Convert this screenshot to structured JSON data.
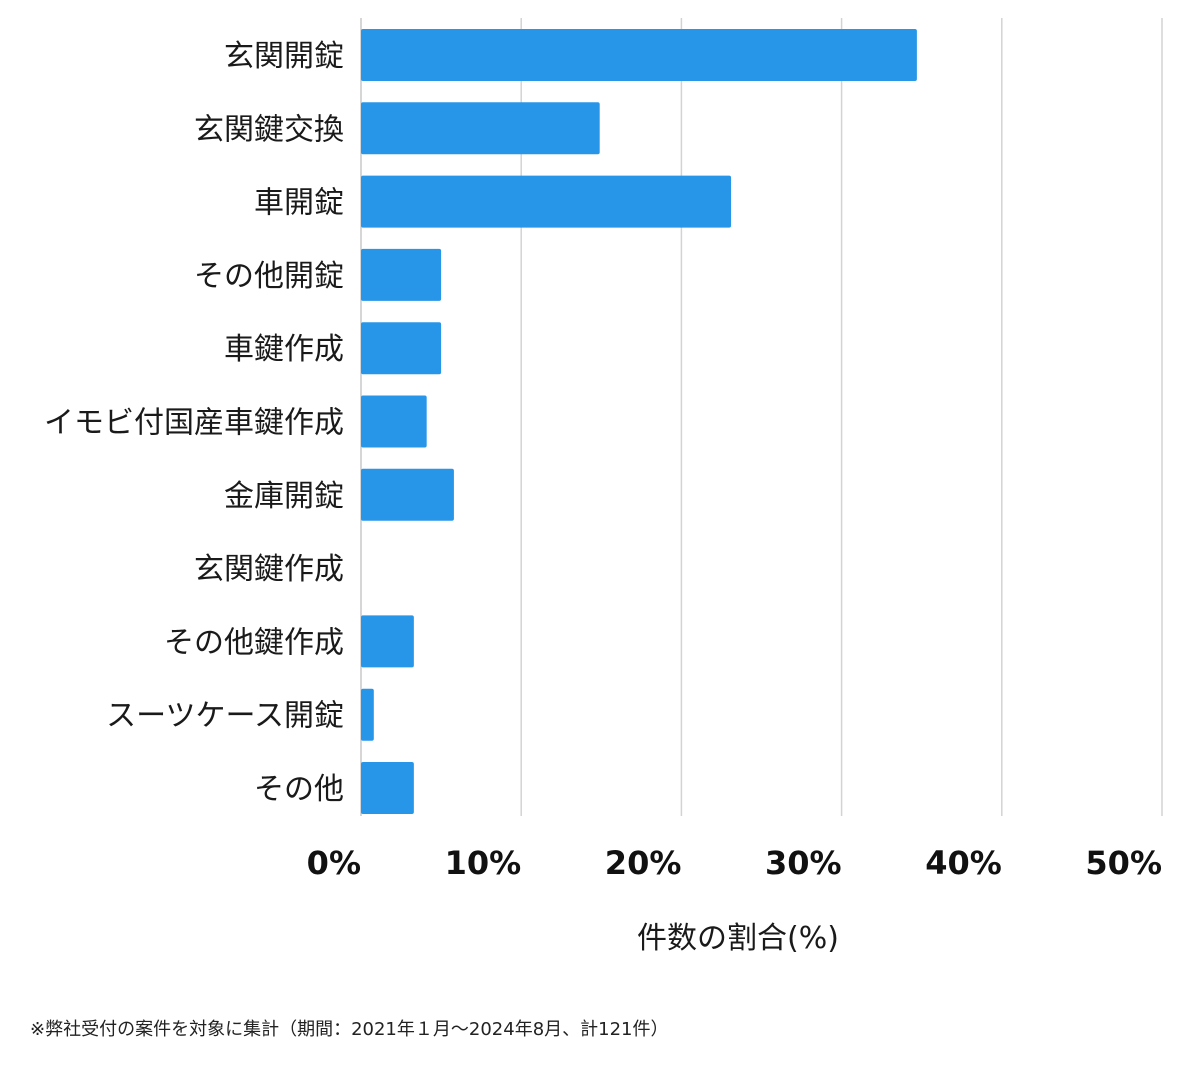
{
  "chart_data": {
    "type": "bar",
    "orientation": "horizontal",
    "categories": [
      "玄関開錠",
      "玄関鍵交換",
      "車開錠",
      "その他開錠",
      "車鍵作成",
      "イモビ付国産車鍵作成",
      "金庫開錠",
      "玄関鍵作成",
      "その他鍵作成",
      "スーツケース開錠",
      "その他"
    ],
    "values": [
      34.7,
      14.9,
      23.1,
      5.0,
      5.0,
      4.1,
      5.8,
      0,
      3.3,
      0.8,
      3.3
    ],
    "xlabel": "件数の割合(%)",
    "xlim": [
      0,
      50
    ],
    "xticks": [
      0,
      10,
      20,
      30,
      40,
      50
    ],
    "xtick_labels": [
      "0%",
      "10%",
      "20%",
      "30%",
      "40%",
      "50%"
    ],
    "grid": true,
    "bar_color": "#2896e8",
    "grid_color": "#d3d3d3"
  },
  "footnote": "※弊社受付の案件を対象に集計（期間：2021年１月〜2024年8月、計121件）"
}
